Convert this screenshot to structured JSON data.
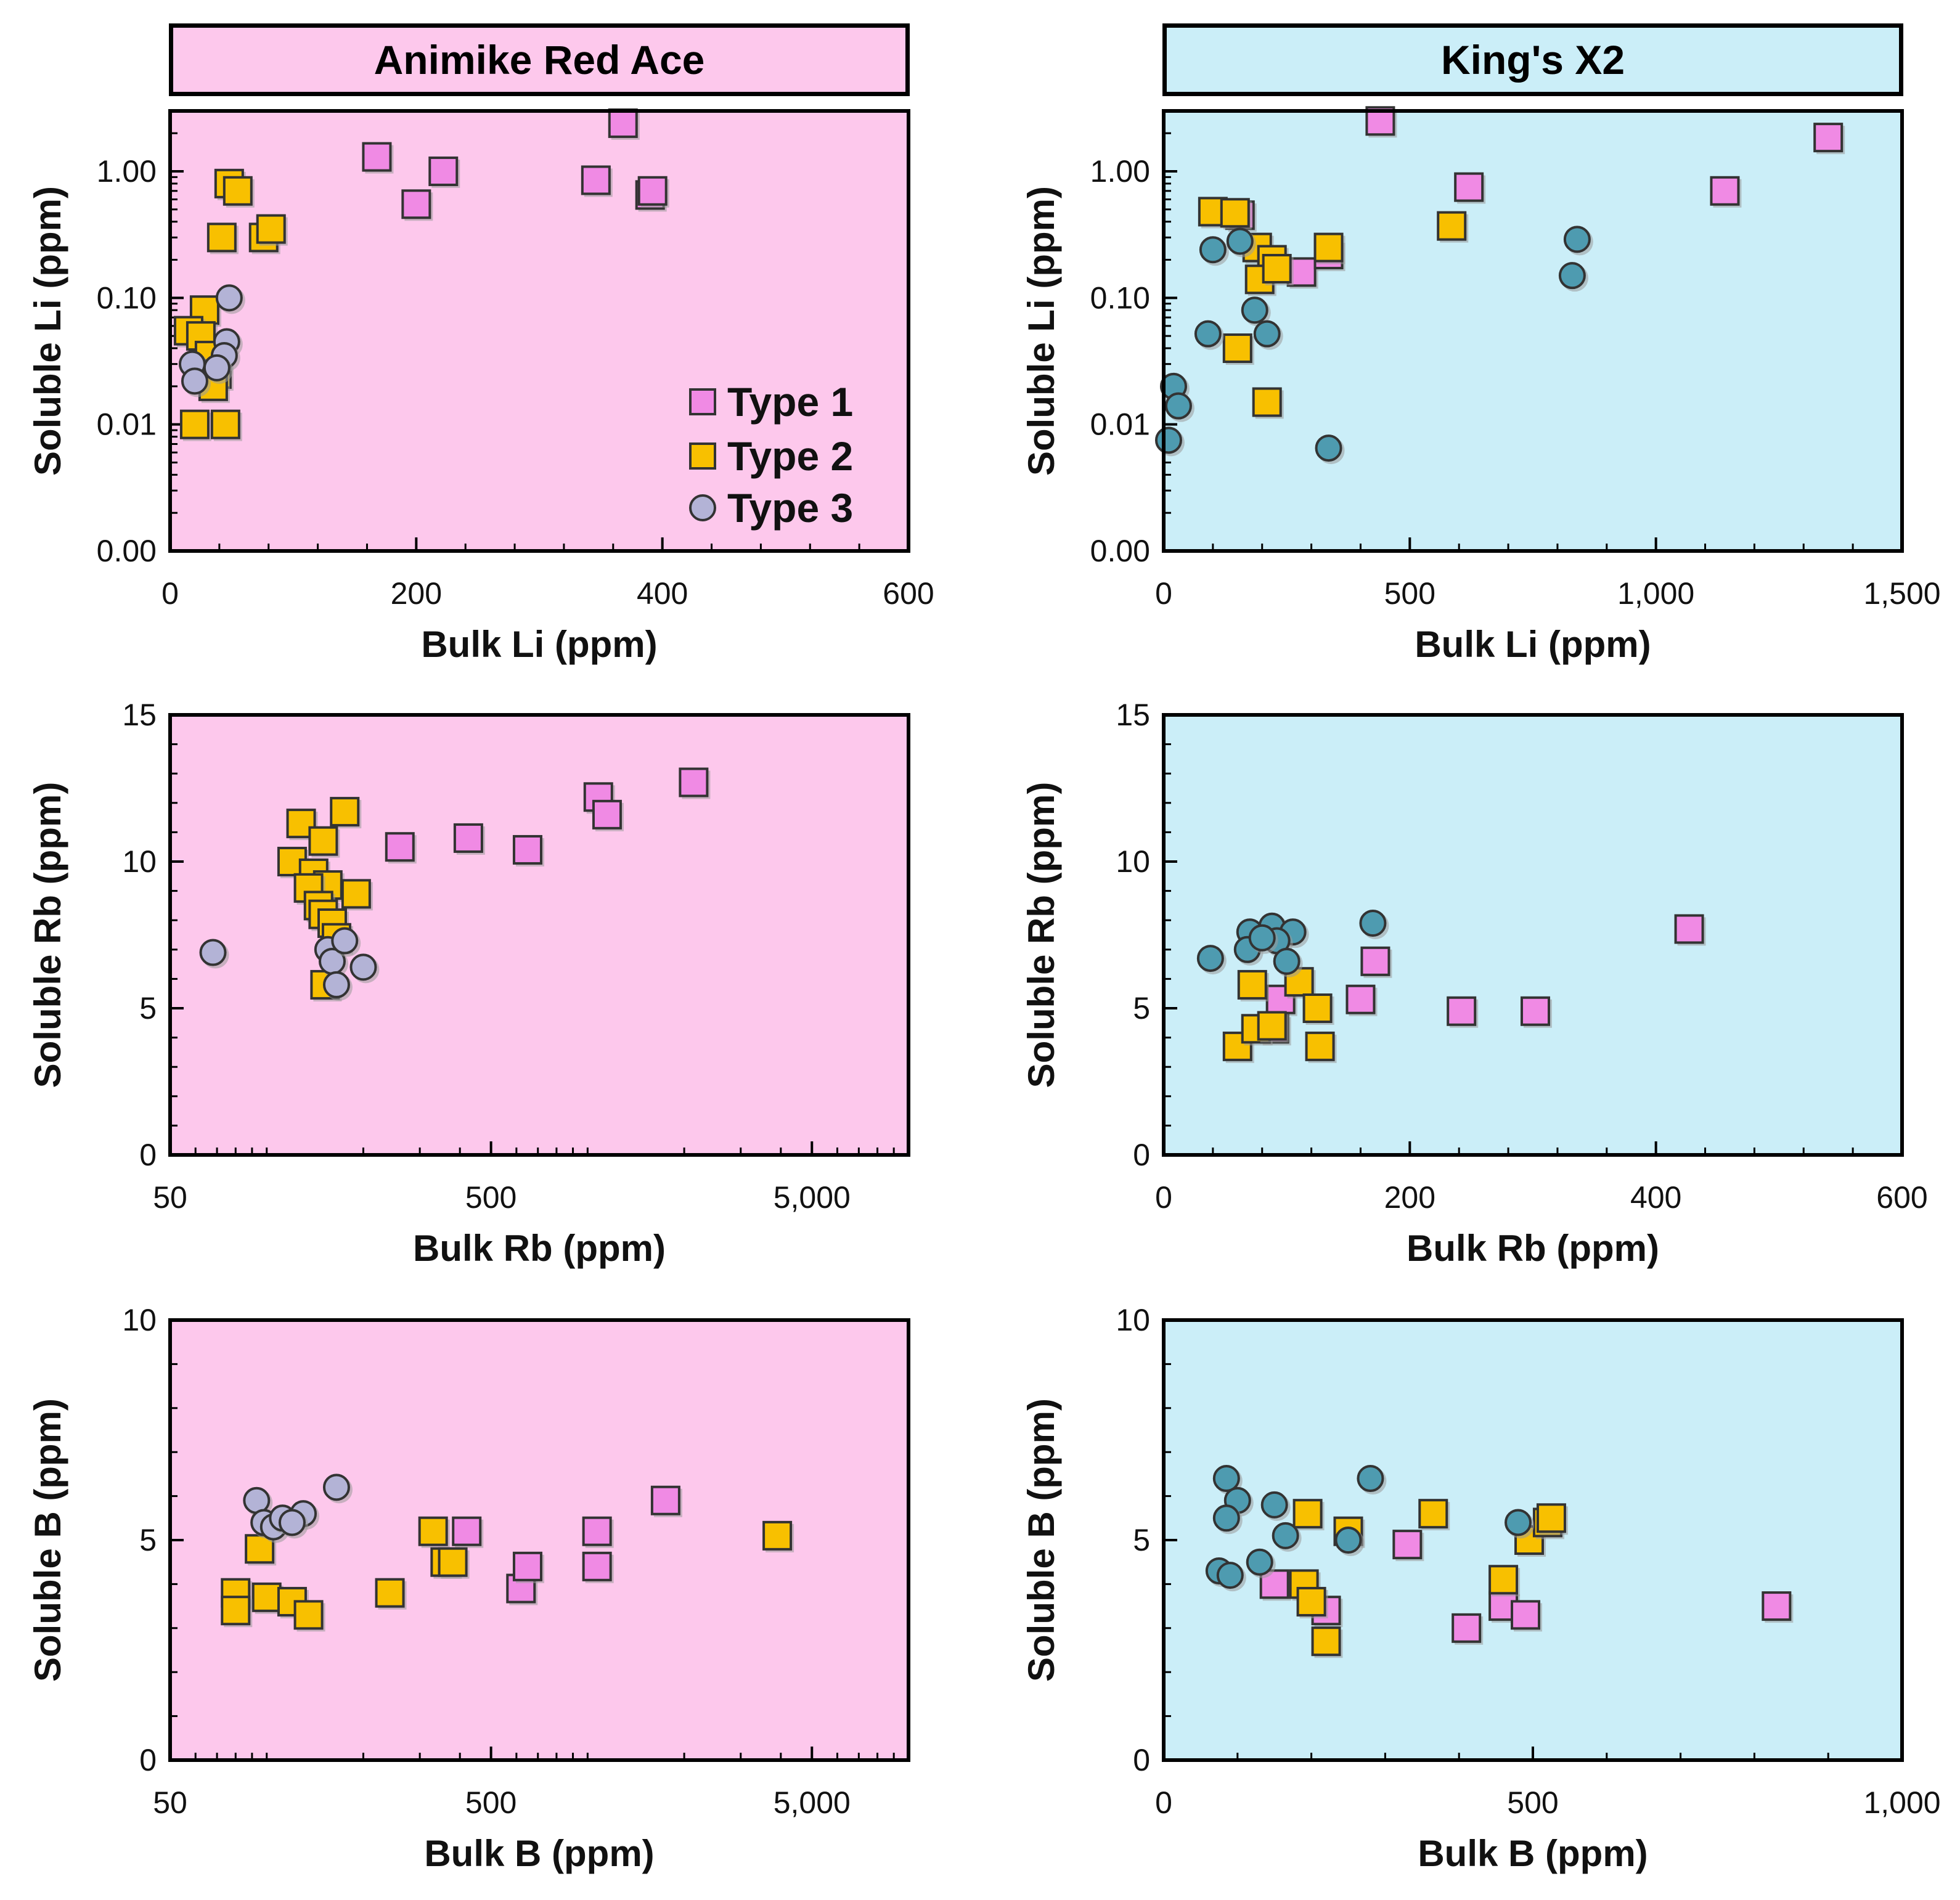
{
  "panels_header": {
    "left": "Animike Red Ace",
    "right": "King's X2"
  },
  "legend": {
    "type1": "Type 1",
    "type2": "Type 2",
    "type3": "Type 3"
  },
  "colors": {
    "type1": "#f08ae4",
    "type2": "#f8c000",
    "type3_light": "#b3b3d6",
    "type3_dark": "#4e9bb0",
    "left_bg": "#fdc8ec",
    "right_bg": "#cbeef8"
  },
  "chart_data": [
    {
      "id": "li-ara",
      "type": "scatter",
      "xscale": "linear",
      "yscale": "log",
      "xlabel": "Bulk Li (ppm)",
      "ylabel": "Soluble Li (ppm)",
      "xlim": [
        0,
        600
      ],
      "ylim": [
        0.001,
        3
      ],
      "xticks": [
        {
          "v": 0,
          "l": "0"
        },
        {
          "v": 200,
          "l": "200"
        },
        {
          "v": 400,
          "l": "400"
        },
        {
          "v": 600,
          "l": "600"
        }
      ],
      "yticks": [
        {
          "v": 0.001,
          "l": "0.00"
        },
        {
          "v": 0.01,
          "l": "0.01"
        },
        {
          "v": 0.1,
          "l": "0.10"
        },
        {
          "v": 1,
          "l": "1.00"
        }
      ],
      "series": [
        {
          "name": "Type 1",
          "points": [
            [
              168,
              1.3
            ],
            [
              222,
              1.0
            ],
            [
              200,
              0.55
            ],
            [
              346,
              0.85
            ],
            [
              368,
              2.4
            ],
            [
              390,
              0.65
            ],
            [
              392,
              0.7
            ]
          ]
        },
        {
          "name": "Type 2",
          "points": [
            [
              48,
              0.8
            ],
            [
              55,
              0.7
            ],
            [
              42,
              0.3
            ],
            [
              76,
              0.3
            ],
            [
              82,
              0.35
            ],
            [
              28,
              0.08
            ],
            [
              15,
              0.055
            ],
            [
              25,
              0.05
            ],
            [
              32,
              0.035
            ],
            [
              38,
              0.025
            ],
            [
              35,
              0.02
            ],
            [
              20,
              0.01
            ],
            [
              45,
              0.01
            ]
          ]
        },
        {
          "name": "Type 3",
          "points": [
            [
              48,
              0.1
            ],
            [
              46,
              0.045
            ],
            [
              44,
              0.035
            ],
            [
              18,
              0.03
            ],
            [
              20,
              0.022
            ],
            [
              38,
              0.028
            ]
          ]
        }
      ]
    },
    {
      "id": "li-kx2",
      "type": "scatter",
      "xscale": "linear",
      "yscale": "log",
      "xlabel": "Bulk Li (ppm)",
      "ylabel": "Soluble Li (ppm)",
      "xlim": [
        0,
        1500
      ],
      "ylim": [
        0.001,
        3
      ],
      "xticks": [
        {
          "v": 0,
          "l": "0"
        },
        {
          "v": 500,
          "l": "500"
        },
        {
          "v": 1000,
          "l": "1,000"
        },
        {
          "v": 1500,
          "l": "1,500"
        }
      ],
      "yticks": [
        {
          "v": 0.001,
          "l": "0.00"
        },
        {
          "v": 0.01,
          "l": "0.01"
        },
        {
          "v": 0.1,
          "l": "0.10"
        },
        {
          "v": 1,
          "l": "1.00"
        }
      ],
      "series": [
        {
          "name": "Type 1",
          "points": [
            [
              440,
              2.5
            ],
            [
              155,
              0.45
            ],
            [
              620,
              0.75
            ],
            [
              1140,
              0.7
            ],
            [
              1350,
              1.85
            ],
            [
              280,
              0.16
            ],
            [
              335,
              0.22
            ]
          ]
        },
        {
          "name": "Type 2",
          "points": [
            [
              100,
              0.48
            ],
            [
              145,
              0.47
            ],
            [
              190,
              0.25
            ],
            [
              220,
              0.2
            ],
            [
              195,
              0.14
            ],
            [
              230,
              0.17
            ],
            [
              335,
              0.25
            ],
            [
              585,
              0.37
            ],
            [
              150,
              0.04
            ],
            [
              210,
              0.015
            ]
          ]
        },
        {
          "name": "Type 3",
          "points": [
            [
              100,
              0.24
            ],
            [
              155,
              0.28
            ],
            [
              840,
              0.29
            ],
            [
              830,
              0.15
            ],
            [
              185,
              0.08
            ],
            [
              90,
              0.052
            ],
            [
              210,
              0.052
            ],
            [
              20,
              0.02
            ],
            [
              30,
              0.014
            ],
            [
              10,
              0.0075
            ],
            [
              335,
              0.0065
            ]
          ]
        }
      ]
    },
    {
      "id": "rb-ara",
      "type": "scatter",
      "xscale": "log",
      "yscale": "linear",
      "xlabel": "Bulk Rb (ppm)",
      "ylabel": "Soluble Rb (ppm)",
      "xlim": [
        50,
        10000
      ],
      "ylim": [
        0,
        15
      ],
      "xticks": [
        {
          "v": 50,
          "l": "50"
        },
        {
          "v": 500,
          "l": "500"
        },
        {
          "v": 5000,
          "l": "5,000"
        }
      ],
      "yticks": [
        {
          "v": 0,
          "l": "0"
        },
        {
          "v": 5,
          "l": "5"
        },
        {
          "v": 10,
          "l": "10"
        },
        {
          "v": 15,
          "l": "15"
        }
      ],
      "series": [
        {
          "name": "Type 1",
          "points": [
            [
              260,
              10.5
            ],
            [
              425,
              10.8
            ],
            [
              650,
              10.4
            ],
            [
              1080,
              12.2
            ],
            [
              1150,
              11.6
            ],
            [
              2140,
              12.7
            ]
          ]
        },
        {
          "name": "Type 2",
          "points": [
            [
              128,
              11.3
            ],
            [
              175,
              11.7
            ],
            [
              150,
              10.7
            ],
            [
              120,
              10.0
            ],
            [
              140,
              9.6
            ],
            [
              155,
              9.2
            ],
            [
              135,
              9.1
            ],
            [
              190,
              8.9
            ],
            [
              145,
              8.5
            ],
            [
              150,
              8.2
            ],
            [
              160,
              7.9
            ],
            [
              165,
              7.4
            ],
            [
              152,
              5.8
            ]
          ]
        },
        {
          "name": "Type 3",
          "points": [
            [
              68,
              6.9
            ],
            [
              155,
              7.0
            ],
            [
              160,
              6.6
            ],
            [
              175,
              7.3
            ],
            [
              200,
              6.4
            ],
            [
              165,
              5.8
            ]
          ]
        }
      ]
    },
    {
      "id": "rb-kx2",
      "type": "scatter",
      "xscale": "linear",
      "yscale": "linear",
      "xlabel": "Bulk Rb (ppm)",
      "ylabel": "Soluble Rb (ppm)",
      "xlim": [
        0,
        600
      ],
      "ylim": [
        0,
        15
      ],
      "xticks": [
        {
          "v": 0,
          "l": "0"
        },
        {
          "v": 200,
          "l": "200"
        },
        {
          "v": 400,
          "l": "400"
        },
        {
          "v": 600,
          "l": "600"
        }
      ],
      "yticks": [
        {
          "v": 0,
          "l": "0"
        },
        {
          "v": 5,
          "l": "5"
        },
        {
          "v": 10,
          "l": "10"
        },
        {
          "v": 15,
          "l": "15"
        }
      ],
      "series": [
        {
          "name": "Type 1",
          "points": [
            [
              95,
              5.3
            ],
            [
              90,
              4.3
            ],
            [
              160,
              5.3
            ],
            [
              172,
              6.6
            ],
            [
              242,
              4.9
            ],
            [
              302,
              4.9
            ],
            [
              427,
              7.7
            ]
          ]
        },
        {
          "name": "Type 2",
          "points": [
            [
              72,
              5.8
            ],
            [
              60,
              3.7
            ],
            [
              75,
              4.3
            ],
            [
              88,
              4.4
            ],
            [
              110,
              5.9
            ],
            [
              125,
              5.0
            ],
            [
              127,
              3.7
            ]
          ]
        },
        {
          "name": "Type 3",
          "points": [
            [
              38,
              6.7
            ],
            [
              70,
              7.6
            ],
            [
              88,
              7.8
            ],
            [
              105,
              7.6
            ],
            [
              170,
              7.9
            ],
            [
              68,
              7.0
            ],
            [
              92,
              7.3
            ],
            [
              100,
              6.6
            ],
            [
              80,
              7.4
            ]
          ]
        }
      ]
    },
    {
      "id": "b-ara",
      "type": "scatter",
      "xscale": "log",
      "yscale": "linear",
      "xlabel": "Bulk B (ppm)",
      "ylabel": "Soluble B (ppm)",
      "xlim": [
        50,
        10000
      ],
      "ylim": [
        0,
        10
      ],
      "xticks": [
        {
          "v": 50,
          "l": "50"
        },
        {
          "v": 500,
          "l": "500"
        },
        {
          "v": 5000,
          "l": "5,000"
        }
      ],
      "yticks": [
        {
          "v": 0,
          "l": "0"
        },
        {
          "v": 5,
          "l": "5"
        },
        {
          "v": 10,
          "l": "10"
        }
      ],
      "series": [
        {
          "name": "Type 1",
          "points": [
            [
              420,
              5.2
            ],
            [
              620,
              3.9
            ],
            [
              650,
              4.4
            ],
            [
              1070,
              5.2
            ],
            [
              1070,
              4.4
            ],
            [
              1750,
              5.9
            ]
          ]
        },
        {
          "name": "Type 2",
          "points": [
            [
              95,
              4.8
            ],
            [
              80,
              3.8
            ],
            [
              100,
              3.7
            ],
            [
              120,
              3.6
            ],
            [
              135,
              3.3
            ],
            [
              80,
              3.4
            ],
            [
              242,
              3.8
            ],
            [
              330,
              5.2
            ],
            [
              360,
              4.5
            ],
            [
              380,
              4.5
            ],
            [
              3900,
              5.1
            ]
          ]
        },
        {
          "name": "Type 3",
          "points": [
            [
              93,
              5.9
            ],
            [
              98,
              5.4
            ],
            [
              105,
              5.3
            ],
            [
              112,
              5.5
            ],
            [
              130,
              5.6
            ],
            [
              165,
              6.2
            ],
            [
              120,
              5.4
            ]
          ]
        }
      ]
    },
    {
      "id": "b-kx2",
      "type": "scatter",
      "xscale": "linear",
      "yscale": "linear",
      "xlabel": "Bulk B (ppm)",
      "ylabel": "Soluble B (ppm)",
      "xlim": [
        0,
        1000
      ],
      "ylim": [
        0,
        10
      ],
      "xticks": [
        {
          "v": 0,
          "l": "0"
        },
        {
          "v": 500,
          "l": "500"
        },
        {
          "v": 1000,
          "l": "1,000"
        }
      ],
      "yticks": [
        {
          "v": 0,
          "l": "0"
        },
        {
          "v": 5,
          "l": "5"
        },
        {
          "v": 10,
          "l": "10"
        }
      ],
      "series": [
        {
          "name": "Type 1",
          "points": [
            [
              150,
              4.0
            ],
            [
              220,
              3.4
            ],
            [
              330,
              4.9
            ],
            [
              410,
              3.0
            ],
            [
              460,
              3.5
            ],
            [
              490,
              3.3
            ],
            [
              830,
              3.5
            ]
          ]
        },
        {
          "name": "Type 2",
          "points": [
            [
              195,
              5.6
            ],
            [
              250,
              5.2
            ],
            [
              365,
              5.6
            ],
            [
              190,
              4.0
            ],
            [
              200,
              3.6
            ],
            [
              220,
              2.7
            ],
            [
              460,
              4.1
            ],
            [
              495,
              5.0
            ],
            [
              520,
              5.4
            ],
            [
              525,
              5.5
            ]
          ]
        },
        {
          "name": "Type 3",
          "points": [
            [
              85,
              6.4
            ],
            [
              100,
              5.9
            ],
            [
              150,
              5.8
            ],
            [
              85,
              5.5
            ],
            [
              165,
              5.1
            ],
            [
              75,
              4.3
            ],
            [
              90,
              4.2
            ],
            [
              130,
              4.5
            ],
            [
              280,
              6.4
            ],
            [
              480,
              5.4
            ],
            [
              250,
              5.0
            ]
          ]
        }
      ]
    }
  ]
}
